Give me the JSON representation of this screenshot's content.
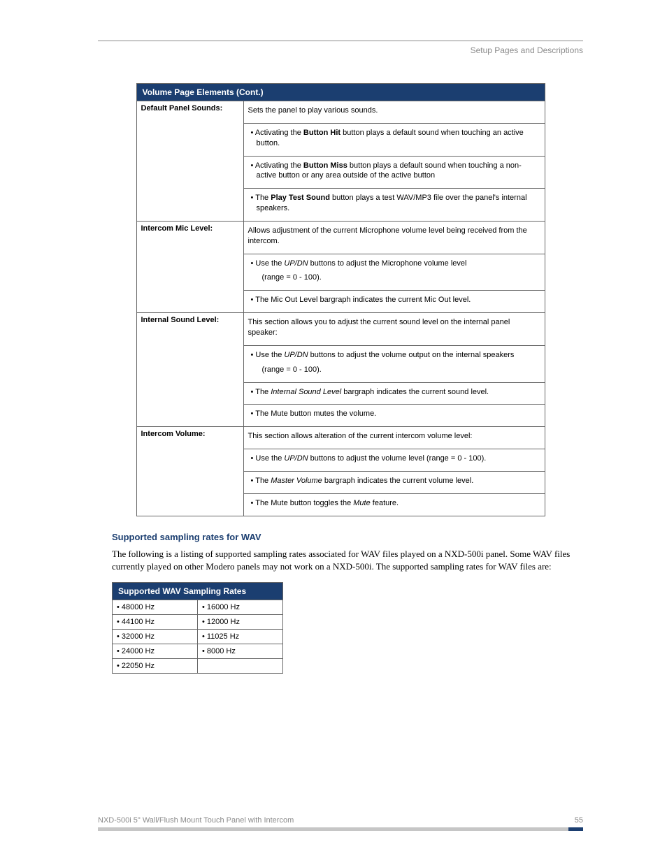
{
  "header": {
    "breadcrumb": "Setup Pages and Descriptions"
  },
  "volume_table": {
    "title": "Volume Page Elements (Cont.)",
    "rows": [
      {
        "label": "Default Panel Sounds:",
        "intro": "Sets the panel to play various sounds.",
        "bullets": [
          {
            "pre": "Activating the ",
            "bold": "Button Hit",
            "post": " button plays a default sound when touching an active button."
          },
          {
            "pre": "Activating the ",
            "bold": "Button Miss",
            "post": " button plays a default sound when touching a non-active button or any area outside of the active button"
          },
          {
            "pre": "The ",
            "bold": "Play Test Sound",
            "post": " button plays a test WAV/MP3 file over the panel's internal speakers."
          }
        ]
      },
      {
        "label": "Intercom Mic Level:",
        "intro": "Allows adjustment of the current Microphone volume level being received from the intercom.",
        "bullets": [
          {
            "pre": "Use the ",
            "ital": "UP/DN",
            "post": " buttons to adjust the Microphone volume level",
            "sub": "(range = 0 - 100)."
          },
          {
            "plain": "The Mic Out Level bargraph indicates the current Mic Out level."
          }
        ]
      },
      {
        "label": "Internal Sound Level:",
        "intro": "This section allows you to adjust the current sound level on the internal panel speaker:",
        "bullets": [
          {
            "pre": "Use the ",
            "ital": "UP/DN",
            "post": " buttons to adjust the volume output on the internal speakers",
            "sub": "(range = 0 - 100)."
          },
          {
            "pre": "The ",
            "ital": "Internal Sound Level",
            "post": " bargraph indicates the current sound level."
          },
          {
            "plain": "The Mute button mutes the volume."
          }
        ]
      },
      {
        "label": "Intercom Volume:",
        "intro": "This section allows alteration of the current intercom volume level:",
        "bullets": [
          {
            "pre": "Use the ",
            "ital": "UP/DN",
            "post": " buttons to adjust the volume level (range = 0 - 100)."
          },
          {
            "pre": "The ",
            "ital": "Master Volume",
            "post": " bargraph indicates the current volume level."
          },
          {
            "pre": "The Mute button toggles the ",
            "ital": "Mute",
            "post": " feature."
          }
        ]
      }
    ]
  },
  "section": {
    "title": "Supported sampling rates for WAV",
    "body": "The following is a listing of supported sampling rates associated for WAV files played on a NXD-500i panel. Some WAV files currently played on other Modero panels may not work on a NXD-500i. The supported sampling rates for WAV files are:"
  },
  "rates_table": {
    "title": "Supported WAV Sampling Rates",
    "rows": [
      [
        "• 48000 Hz",
        "• 16000 Hz"
      ],
      [
        "• 44100 Hz",
        "• 12000 Hz"
      ],
      [
        "• 32000 Hz",
        "• 11025 Hz"
      ],
      [
        "• 24000 Hz",
        "• 8000 Hz"
      ],
      [
        "• 22050 Hz",
        ""
      ]
    ]
  },
  "footer": {
    "product": "NXD-500i 5\" Wall/Flush Mount Touch Panel with Intercom",
    "page": "55"
  }
}
